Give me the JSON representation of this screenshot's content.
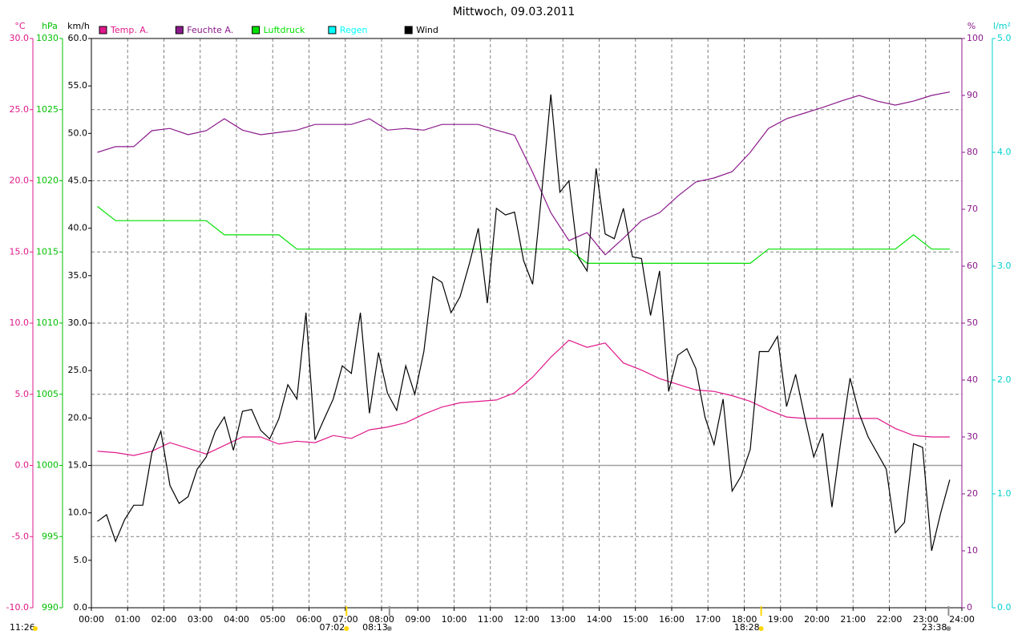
{
  "chart_data": {
    "type": "line",
    "title": "Mittwoch, 09.03.2011",
    "xlim": [
      0,
      1440
    ],
    "xticks": [
      {
        "value": 0,
        "label": "00:00"
      },
      {
        "value": 60,
        "label": "01:00"
      },
      {
        "value": 120,
        "label": "02:00"
      },
      {
        "value": 180,
        "label": "03:00"
      },
      {
        "value": 240,
        "label": "04:00"
      },
      {
        "value": 300,
        "label": "05:00"
      },
      {
        "value": 360,
        "label": "06:00"
      },
      {
        "value": 420,
        "label": "07:00"
      },
      {
        "value": 480,
        "label": "08:00"
      },
      {
        "value": 540,
        "label": "09:00"
      },
      {
        "value": 600,
        "label": "10:00"
      },
      {
        "value": 660,
        "label": "11:00"
      },
      {
        "value": 720,
        "label": "12:00"
      },
      {
        "value": 780,
        "label": "13:00"
      },
      {
        "value": 840,
        "label": "14:00"
      },
      {
        "value": 900,
        "label": "15:00"
      },
      {
        "value": 960,
        "label": "16:00"
      },
      {
        "value": 1020,
        "label": "17:00"
      },
      {
        "value": 1080,
        "label": "18:00"
      },
      {
        "value": 1140,
        "label": "19:00"
      },
      {
        "value": 1200,
        "label": "20:00"
      },
      {
        "value": 1260,
        "label": "21:00"
      },
      {
        "value": 1320,
        "label": "22:00"
      },
      {
        "value": 1380,
        "label": "23:00"
      },
      {
        "value": 1440,
        "label": "24:00"
      }
    ],
    "grid": true,
    "legend": "top",
    "axes": [
      {
        "id": "temp",
        "label": "°C",
        "color": "#e0198b",
        "side": "left",
        "grid": true,
        "zero_line": true,
        "lim": [
          -10,
          30
        ],
        "ticks": [
          {
            "value": -10,
            "label": "-10.0"
          },
          {
            "value": -5,
            "label": "-5.0"
          },
          {
            "value": 0,
            "label": "0.0"
          },
          {
            "value": 5,
            "label": "5.0"
          },
          {
            "value": 10,
            "label": "10.0"
          },
          {
            "value": 15,
            "label": "15.0"
          },
          {
            "value": 20,
            "label": "20.0"
          },
          {
            "value": 25,
            "label": "25.0"
          },
          {
            "value": 30,
            "label": "30.0"
          }
        ]
      },
      {
        "id": "hpa",
        "label": "hPa",
        "color": "#00c000",
        "side": "left",
        "lim": [
          990,
          1030
        ],
        "ticks": [
          990,
          995,
          1000,
          1005,
          1010,
          1015,
          1020,
          1025,
          1030
        ]
      },
      {
        "id": "kmh",
        "label": "km/h",
        "color": "#000000",
        "side": "left",
        "lim": [
          0,
          60
        ],
        "ticks": [
          {
            "value": 0,
            "label": "0.0"
          },
          {
            "value": 5,
            "label": "5.0"
          },
          {
            "value": 10,
            "label": "10.0"
          },
          {
            "value": 15,
            "label": "15.0"
          },
          {
            "value": 20,
            "label": "20.0"
          },
          {
            "value": 25,
            "label": "25.0"
          },
          {
            "value": 30,
            "label": "30.0"
          },
          {
            "value": 35,
            "label": "35.0"
          },
          {
            "value": 40,
            "label": "40.0"
          },
          {
            "value": 45,
            "label": "45.0"
          },
          {
            "value": 50,
            "label": "50.0"
          },
          {
            "value": 55,
            "label": "55.0"
          },
          {
            "value": 60,
            "label": "60.0"
          }
        ]
      },
      {
        "id": "pct",
        "label": "%",
        "color": "#8b1a8b",
        "side": "right",
        "lim": [
          0,
          100
        ],
        "ticks": [
          0,
          10,
          20,
          30,
          40,
          50,
          60,
          70,
          80,
          90,
          100
        ]
      },
      {
        "id": "rain",
        "label": "l/m²",
        "color": "#00d0d0",
        "side": "right",
        "lim": [
          0,
          5
        ],
        "ticks": [
          {
            "value": 0,
            "label": "0.0"
          },
          {
            "value": 1,
            "label": "1.0"
          },
          {
            "value": 2,
            "label": "2.0"
          },
          {
            "value": 3,
            "label": "3.0"
          },
          {
            "value": 4,
            "label": "4.0"
          },
          {
            "value": 5,
            "label": "5.0"
          }
        ]
      }
    ],
    "series": [
      {
        "name": "Temp. A.",
        "color": "#e0198b",
        "axis": "temp",
        "x": [
          10,
          40,
          70,
          100,
          130,
          160,
          190,
          220,
          250,
          280,
          310,
          340,
          370,
          400,
          430,
          460,
          490,
          520,
          550,
          580,
          610,
          640,
          670,
          700,
          730,
          760,
          790,
          820,
          850,
          880,
          910,
          940,
          970,
          1000,
          1030,
          1060,
          1090,
          1120,
          1150,
          1180,
          1210,
          1240,
          1270,
          1300,
          1330,
          1360,
          1390,
          1420
        ],
        "values": [
          1.0,
          0.9,
          0.7,
          1.0,
          1.6,
          1.2,
          0.8,
          1.4,
          2.0,
          2.0,
          1.5,
          1.7,
          1.6,
          2.1,
          1.9,
          2.5,
          2.7,
          3.0,
          3.6,
          4.1,
          4.4,
          4.5,
          4.6,
          5.1,
          6.2,
          7.6,
          8.8,
          8.3,
          8.6,
          7.2,
          6.7,
          6.1,
          5.7,
          5.3,
          5.2,
          4.9,
          4.5,
          3.9,
          3.4,
          3.3,
          3.3,
          3.3,
          3.3,
          3.3,
          2.6,
          2.1,
          2.0,
          2.0
        ]
      },
      {
        "name": "Feuchte A.",
        "color": "#8b1a8b",
        "axis": "pct",
        "x": [
          10,
          40,
          70,
          100,
          130,
          160,
          190,
          220,
          250,
          280,
          310,
          340,
          370,
          400,
          430,
          460,
          490,
          520,
          550,
          580,
          610,
          640,
          670,
          700,
          730,
          760,
          790,
          820,
          850,
          880,
          910,
          940,
          970,
          1000,
          1030,
          1060,
          1090,
          1120,
          1150,
          1180,
          1210,
          1240,
          1270,
          1300,
          1330,
          1360,
          1390,
          1420
        ],
        "values": [
          80,
          81,
          81,
          83.8,
          84.2,
          83.1,
          83.8,
          85.9,
          83.9,
          83.1,
          83.5,
          83.9,
          84.9,
          84.9,
          84.9,
          85.9,
          83.9,
          84.2,
          83.9,
          84.9,
          84.9,
          84.9,
          83.9,
          83,
          76.5,
          69.4,
          64.5,
          65.9,
          62,
          64.9,
          68,
          69.4,
          72.3,
          74.8,
          75.5,
          76.6,
          80,
          84.2,
          85.9,
          86.9,
          87.9,
          89,
          90,
          89,
          88.3,
          89,
          90,
          90.6
        ]
      },
      {
        "name": "Luftdruck",
        "color": "#00e000",
        "axis": "hpa",
        "x": [
          10,
          40,
          70,
          100,
          130,
          160,
          190,
          220,
          250,
          280,
          310,
          340,
          370,
          400,
          430,
          460,
          490,
          520,
          550,
          580,
          610,
          640,
          670,
          700,
          730,
          760,
          790,
          820,
          850,
          880,
          910,
          940,
          970,
          1000,
          1030,
          1060,
          1090,
          1120,
          1150,
          1180,
          1210,
          1240,
          1270,
          1300,
          1330,
          1360,
          1390,
          1420
        ],
        "values": [
          1018.2,
          1017.2,
          1017.2,
          1017.2,
          1017.2,
          1017.2,
          1017.2,
          1016.2,
          1016.2,
          1016.2,
          1016.2,
          1015.2,
          1015.2,
          1015.2,
          1015.2,
          1015.2,
          1015.2,
          1015.2,
          1015.2,
          1015.2,
          1015.2,
          1015.2,
          1015.2,
          1015.2,
          1015.2,
          1015.2,
          1015.2,
          1014.2,
          1014.2,
          1014.2,
          1014.2,
          1014.2,
          1014.2,
          1014.2,
          1014.2,
          1014.2,
          1014.2,
          1015.2,
          1015.2,
          1015.2,
          1015.2,
          1015.2,
          1015.2,
          1015.2,
          1015.2,
          1016.2,
          1015.2,
          1015.2
        ]
      },
      {
        "name": "Regen",
        "color": "#00ffff",
        "axis": "rain"
      },
      {
        "name": "Wind",
        "color": "#000000",
        "axis": "kmh",
        "x": [
          10,
          25,
          40,
          55,
          70,
          85,
          100,
          115,
          130,
          145,
          160,
          175,
          190,
          205,
          220,
          235,
          250,
          265,
          280,
          295,
          310,
          325,
          340,
          355,
          370,
          385,
          400,
          415,
          430,
          445,
          460,
          475,
          490,
          505,
          520,
          535,
          550,
          565,
          580,
          595,
          610,
          625,
          640,
          655,
          670,
          685,
          700,
          715,
          730,
          745,
          760,
          775,
          790,
          805,
          820,
          835,
          850,
          865,
          880,
          895,
          910,
          925,
          940,
          955,
          970,
          985,
          1000,
          1015,
          1030,
          1045,
          1060,
          1075,
          1090,
          1105,
          1120,
          1135,
          1150,
          1165,
          1180,
          1195,
          1210,
          1225,
          1240,
          1255,
          1270,
          1285,
          1300,
          1315,
          1330,
          1345,
          1360,
          1375,
          1390,
          1405,
          1420
        ],
        "values": [
          9.1,
          9.8,
          7.0,
          9.3,
          10.8,
          10.8,
          16.3,
          18.6,
          12.9,
          11.0,
          11.7,
          14.6,
          15.9,
          18.6,
          20.1,
          16.6,
          20.7,
          20.9,
          18.7,
          17.8,
          19.9,
          23.5,
          22.0,
          31.1,
          17.7,
          19.9,
          22.0,
          25.5,
          24.7,
          31.1,
          20.5,
          26.9,
          22.6,
          20.8,
          25.5,
          22.5,
          27.0,
          34.9,
          34.3,
          31.1,
          32.8,
          36.2,
          40.0,
          32.1,
          42.1,
          41.4,
          41.7,
          36.6,
          34.1,
          43.8,
          54.1,
          43.8,
          45.0,
          37.0,
          35.5,
          46.3,
          39.4,
          38.9,
          42.1,
          37.0,
          36.8,
          30.8,
          35.5,
          22.8,
          26.6,
          27.3,
          25.2,
          20.1,
          17.2,
          22.0,
          12.3,
          13.9,
          16.7,
          27.0,
          27.0,
          28.6,
          21.2,
          24.6,
          20.1,
          15.9,
          18.4,
          10.6,
          17.7,
          24.2,
          20.5,
          18.0,
          16.3,
          14.6,
          7.9,
          9.0,
          17.3,
          16.9,
          6.0,
          10.0,
          13.5
        ]
      }
    ],
    "annotations": [
      "11:26",
      "07:02",
      "08:13",
      "18:28",
      "23:38"
    ]
  }
}
